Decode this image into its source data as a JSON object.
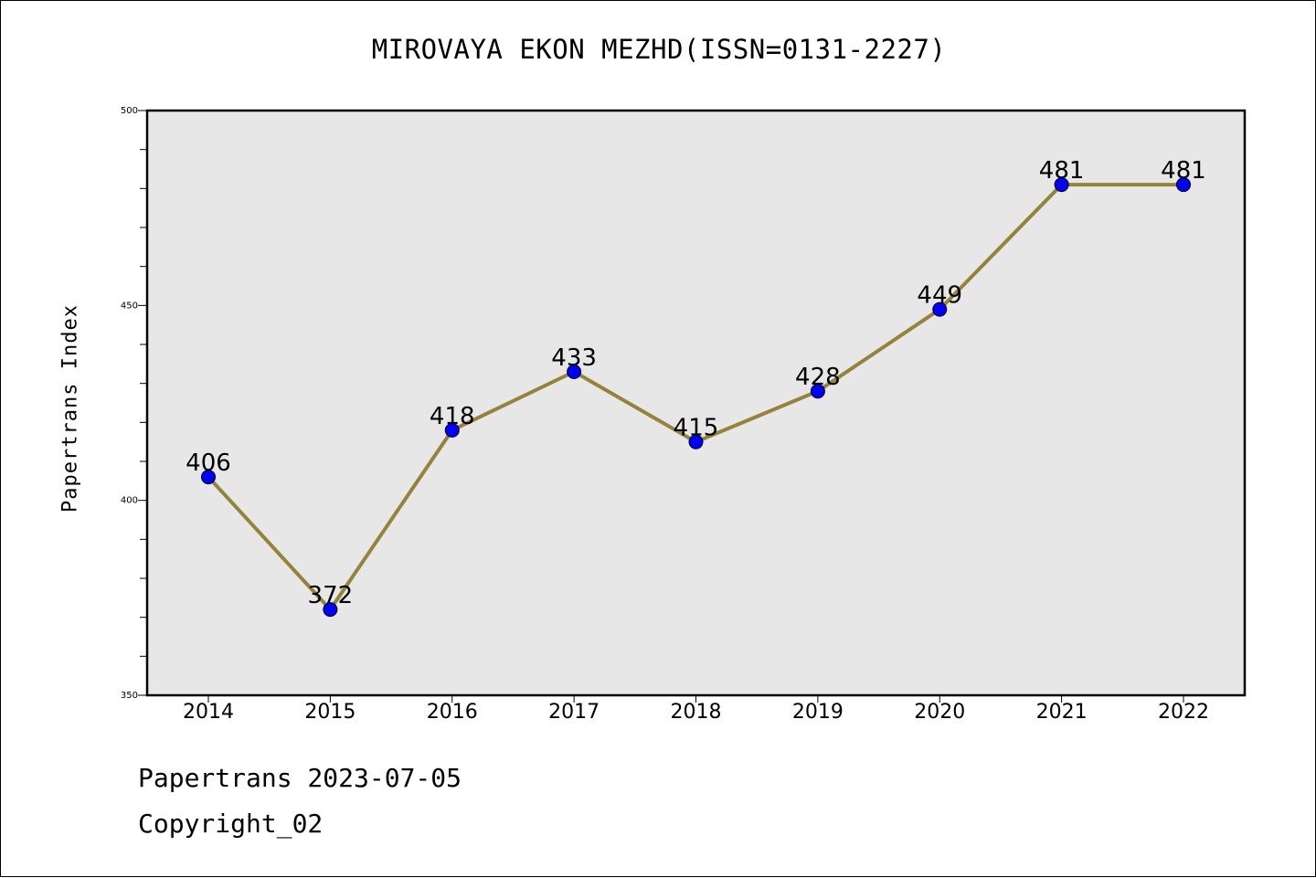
{
  "chart_data": {
    "type": "line",
    "title": "MIROVAYA EKON MEZHD(ISSN=0131-2227)",
    "xlabel": "",
    "ylabel": "Papertrans Index",
    "categories": [
      "2014",
      "2015",
      "2016",
      "2017",
      "2018",
      "2019",
      "2020",
      "2021",
      "2022"
    ],
    "values": [
      406,
      372,
      418,
      433,
      415,
      428,
      449,
      481,
      481
    ],
    "data_labels": [
      "406",
      "372",
      "418",
      "433",
      "415",
      "428",
      "449",
      "481",
      "481"
    ],
    "ylim": [
      350,
      500
    ],
    "yticks": [
      "350",
      "400",
      "450",
      "500"
    ],
    "grid": false,
    "colors": {
      "line": "#94843a",
      "marker": "#0000ff",
      "plot_background": "#e7e7e7"
    }
  },
  "footer": {
    "line1": "Papertrans 2023-07-05",
    "line2": "Copyright_02"
  }
}
